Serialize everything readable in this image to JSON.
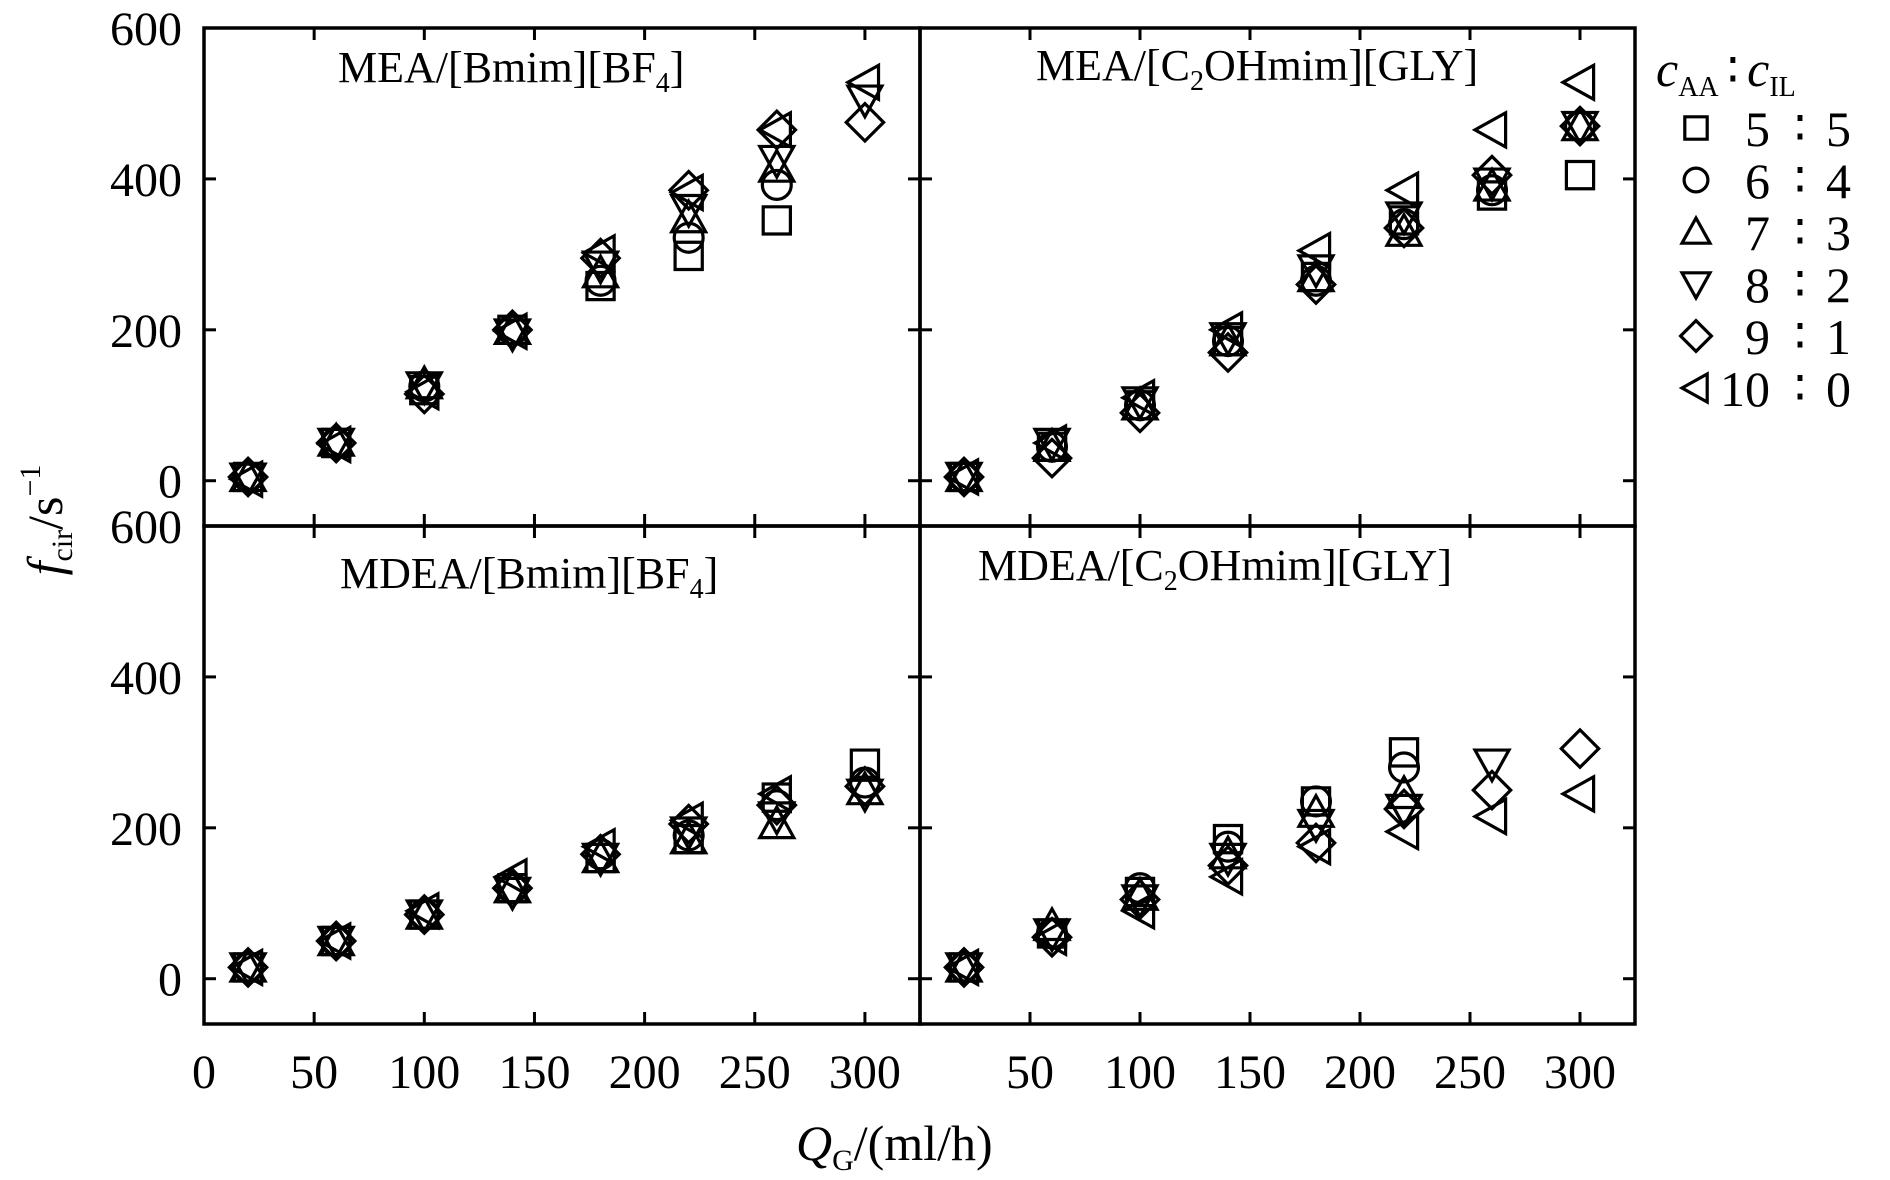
{
  "figure": {
    "xlabel": "Q",
    "xlabel_sub": "G",
    "xlabel_unit": "/(ml/h)",
    "ylabel": "f",
    "ylabel_sub": "cir",
    "ylabel_unit": "/s",
    "ylabel_sup": "−1"
  },
  "legend": {
    "header": {
      "a": "c",
      "a_sub": "AA",
      "colon": "∶",
      "b": "c",
      "b_sub": "IL"
    },
    "entries": [
      {
        "marker": "square",
        "ratio_aa": "5",
        "ratio_il": "5"
      },
      {
        "marker": "circle",
        "ratio_aa": "6",
        "ratio_il": "4"
      },
      {
        "marker": "triangle-up",
        "ratio_aa": "7",
        "ratio_il": "3"
      },
      {
        "marker": "triangle-down",
        "ratio_aa": "8",
        "ratio_il": "2"
      },
      {
        "marker": "diamond",
        "ratio_aa": "9",
        "ratio_il": "1"
      },
      {
        "marker": "triangle-left",
        "ratio_aa": "10",
        "ratio_il": "0"
      }
    ]
  },
  "chart_data": [
    {
      "type": "scatter",
      "title": "MEA/[Bmim][BF4]",
      "title_main": "MEA/[Bmim][BF",
      "title_sub": "4",
      "title_tail": "]",
      "x": [
        20,
        60,
        100,
        140,
        180,
        220,
        260,
        300
      ],
      "xlim": [
        0,
        325
      ],
      "ylim": [
        -60,
        600
      ],
      "xticks": [
        0,
        50,
        100,
        150,
        200,
        250,
        300
      ],
      "xtick_labels": [
        "0",
        "50",
        "100",
        "150",
        "200",
        "250",
        "300"
      ],
      "yticks": [
        0,
        200,
        400,
        600
      ],
      "ytick_labels": [
        "0",
        "200",
        "400",
        "600"
      ],
      "series": [
        {
          "name": "5:5",
          "marker": "square",
          "values": [
            5,
            50,
            120,
            200,
            258,
            298,
            345,
            null
          ]
        },
        {
          "name": "6:4",
          "marker": "circle",
          "values": [
            5,
            50,
            125,
            200,
            265,
            322,
            392,
            null
          ]
        },
        {
          "name": "7:3",
          "marker": "triangle-up",
          "values": [
            5,
            52,
            128,
            200,
            275,
            348,
            415,
            null
          ]
        },
        {
          "name": "8:2",
          "marker": "triangle-down",
          "values": [
            4,
            50,
            125,
            195,
            285,
            360,
            425,
            505
          ]
        },
        {
          "name": "9:1",
          "marker": "diamond",
          "values": [
            5,
            50,
            115,
            200,
            295,
            385,
            465,
            475
          ]
        },
        {
          "name": "10:0",
          "marker": "triangle-left",
          "values": [
            2,
            48,
            118,
            198,
            302,
            382,
            465,
            528
          ]
        }
      ]
    },
    {
      "type": "scatter",
      "title": "MEA/[C2OHmim][GLY]",
      "title_main": "MEA/[C",
      "title_sub": "2",
      "title_tail": "OHmim][GLY]",
      "x": [
        20,
        60,
        100,
        140,
        180,
        220,
        260,
        300
      ],
      "xlim": [
        0,
        325
      ],
      "ylim": [
        -60,
        600
      ],
      "xticks": [
        0,
        50,
        100,
        150,
        200,
        250,
        300
      ],
      "xtick_labels": [
        "",
        "50",
        "100",
        "150",
        "200",
        "250",
        "300"
      ],
      "yticks": [
        0,
        200,
        400,
        600
      ],
      "ytick_labels": [
        "",
        "",
        "",
        ""
      ],
      "series": [
        {
          "name": "5:5",
          "marker": "square",
          "values": [
            5,
            45,
            100,
            185,
            270,
            345,
            378,
            405
          ]
        },
        {
          "name": "6:4",
          "marker": "circle",
          "values": [
            5,
            45,
            100,
            185,
            265,
            340,
            385,
            470
          ]
        },
        {
          "name": "7:3",
          "marker": "triangle-up",
          "values": [
            5,
            45,
            100,
            185,
            270,
            330,
            390,
            470
          ]
        },
        {
          "name": "8:2",
          "marker": "triangle-down",
          "values": [
            5,
            50,
            105,
            190,
            280,
            350,
            395,
            470
          ]
        },
        {
          "name": "9:1",
          "marker": "diamond",
          "values": [
            5,
            30,
            90,
            170,
            260,
            335,
            405,
            470
          ]
        },
        {
          "name": "10:0",
          "marker": "triangle-left",
          "values": [
            5,
            50,
            110,
            200,
            305,
            385,
            465,
            528
          ]
        }
      ]
    },
    {
      "type": "scatter",
      "title": "MDEA/[Bmim][BF4]",
      "title_main": "MDEA/[Bmim][BF",
      "title_sub": "4",
      "title_tail": "]",
      "x": [
        20,
        60,
        100,
        140,
        180,
        220,
        260,
        300
      ],
      "xlim": [
        0,
        325
      ],
      "ylim": [
        -60,
        600
      ],
      "xticks": [
        0,
        50,
        100,
        150,
        200,
        250,
        300
      ],
      "xtick_labels": [
        "0",
        "50",
        "100",
        "150",
        "200",
        "250",
        "300"
      ],
      "yticks": [
        0,
        200,
        400,
        600
      ],
      "ytick_labels": [
        "0",
        "200",
        "400",
        "600"
      ],
      "series": [
        {
          "name": "5:5",
          "marker": "square",
          "values": [
            15,
            50,
            85,
            120,
            160,
            185,
            240,
            285
          ]
        },
        {
          "name": "6:4",
          "marker": "circle",
          "values": [
            15,
            50,
            85,
            120,
            165,
            190,
            230,
            260
          ]
        },
        {
          "name": "7:3",
          "marker": "triangle-up",
          "values": [
            15,
            50,
            85,
            120,
            160,
            185,
            205,
            250
          ]
        },
        {
          "name": "8:2",
          "marker": "triangle-down",
          "values": [
            15,
            50,
            85,
            115,
            160,
            195,
            215,
            245
          ]
        },
        {
          "name": "9:1",
          "marker": "diamond",
          "values": [
            15,
            50,
            85,
            120,
            165,
            205,
            230,
            255
          ]
        },
        {
          "name": "10:0",
          "marker": "triangle-left",
          "values": [
            15,
            50,
            90,
            135,
            175,
            210,
            245,
            null
          ]
        }
      ]
    },
    {
      "type": "scatter",
      "title": "MDEA/[C2OHmim][GLY]",
      "title_main": "MDEA/[C",
      "title_sub": "2",
      "title_tail": "OHmim][GLY]",
      "x": [
        20,
        60,
        100,
        140,
        180,
        220,
        260,
        300
      ],
      "xlim": [
        0,
        325
      ],
      "ylim": [
        -60,
        600
      ],
      "xticks": [
        0,
        50,
        100,
        150,
        200,
        250,
        300
      ],
      "xtick_labels": [
        "",
        "50",
        "100",
        "150",
        "200",
        "250",
        "300"
      ],
      "yticks": [
        0,
        200,
        400,
        600
      ],
      "ytick_labels": [
        "",
        "",
        "",
        ""
      ],
      "series": [
        {
          "name": "5:5",
          "marker": "square",
          "values": [
            15,
            60,
            115,
            185,
            235,
            300,
            null,
            null
          ]
        },
        {
          "name": "6:4",
          "marker": "circle",
          "values": [
            15,
            60,
            120,
            175,
            235,
            280,
            null,
            null
          ]
        },
        {
          "name": "7:3",
          "marker": "triangle-up",
          "values": [
            15,
            70,
            110,
            165,
            220,
            245,
            null,
            null
          ]
        },
        {
          "name": "8:2",
          "marker": "triangle-down",
          "values": [
            15,
            60,
            105,
            160,
            205,
            225,
            285,
            null
          ]
        },
        {
          "name": "9:1",
          "marker": "diamond",
          "values": [
            15,
            55,
            105,
            150,
            180,
            225,
            250,
            305
          ]
        },
        {
          "name": "10:0",
          "marker": "triangle-left",
          "values": [
            15,
            55,
            90,
            135,
            175,
            195,
            215,
            245
          ]
        }
      ]
    }
  ]
}
